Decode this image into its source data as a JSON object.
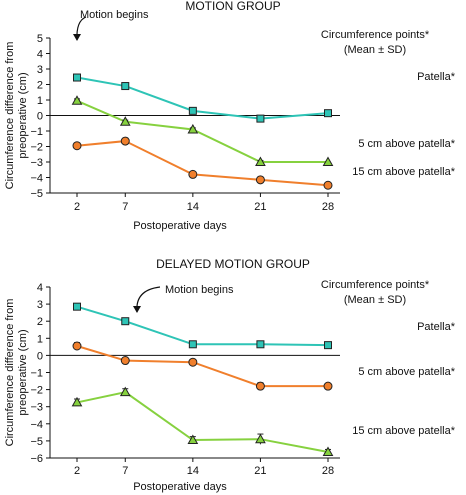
{
  "chart_data": [
    {
      "type": "line",
      "title": "MOTION GROUP",
      "xlabel": "Postoperative days",
      "ylabel": "Circumference difference from preoperative (cm)",
      "ylabel_lines": [
        "Circumference difference from",
        "preoperative (cm)"
      ],
      "x": [
        2,
        7,
        14,
        21,
        28
      ],
      "xticks": [
        "2",
        "7",
        "14",
        "21",
        "28"
      ],
      "ylim": [
        -5,
        5
      ],
      "yticks": [
        "-5",
        "-4",
        "-3",
        "-2",
        "-1",
        "0",
        "1",
        "2",
        "3",
        "4",
        "5"
      ],
      "legend_title": [
        "Circumference points*",
        "(Mean ± SD)"
      ],
      "annotation": "Motion begins",
      "annotation_at_x": 2,
      "series": [
        {
          "name": "Patella*",
          "color": "#2ec4b6",
          "marker": "square",
          "values": [
            2.45,
            1.9,
            0.3,
            -0.2,
            0.15
          ],
          "err": [
            0.12,
            0.1,
            0.1,
            0.1,
            0.1
          ]
        },
        {
          "name": "5 cm above patella*",
          "color": "#86d13f",
          "marker": "triangle",
          "values": [
            0.95,
            -0.4,
            -0.9,
            -3.0,
            -3.0
          ],
          "err": [
            0.12,
            0.1,
            0.1,
            0.1,
            0.0
          ]
        },
        {
          "name": "15 cm above patella*",
          "color": "#f07f2c",
          "marker": "circle",
          "values": [
            -1.95,
            -1.65,
            -3.8,
            -4.15,
            -4.5
          ],
          "err": [
            0.15,
            0.15,
            0.12,
            0.12,
            0.12
          ]
        }
      ]
    },
    {
      "type": "line",
      "title": "DELAYED MOTION GROUP",
      "xlabel": "Postoperative days",
      "ylabel": "Circumference difference from preoperative (cm)",
      "ylabel_lines": [
        "Circumference difference from",
        "preoperative (cm)"
      ],
      "x": [
        2,
        7,
        14,
        21,
        28
      ],
      "xticks": [
        "2",
        "7",
        "14",
        "21",
        "28"
      ],
      "ylim": [
        -6,
        4
      ],
      "yticks": [
        "-6",
        "-5",
        "-4",
        "-3",
        "-2",
        "-1",
        "0",
        "1",
        "2",
        "3",
        "4"
      ],
      "legend_title": [
        "Circumference points*",
        "(Mean ± SD)"
      ],
      "annotation": "Motion begins",
      "annotation_at_x": 7,
      "series": [
        {
          "name": "Patella*",
          "color": "#2ec4b6",
          "marker": "square",
          "values": [
            2.85,
            2.0,
            0.65,
            0.65,
            0.6
          ],
          "err": [
            0.12,
            0.12,
            0.12,
            0.15,
            0.12
          ]
        },
        {
          "name": "5 cm above patella*",
          "color": "#f07f2c",
          "marker": "circle",
          "values": [
            0.55,
            -0.3,
            -0.4,
            -1.8,
            -1.8
          ],
          "err": [
            0.2,
            0.15,
            0.12,
            0.2,
            0.15
          ]
        },
        {
          "name": "15 cm above patella*",
          "color": "#86d13f",
          "marker": "triangle",
          "values": [
            -2.75,
            -2.15,
            -4.95,
            -4.9,
            -5.65
          ],
          "err": [
            0.2,
            0.2,
            0.2,
            0.3,
            0.15
          ]
        }
      ]
    }
  ]
}
